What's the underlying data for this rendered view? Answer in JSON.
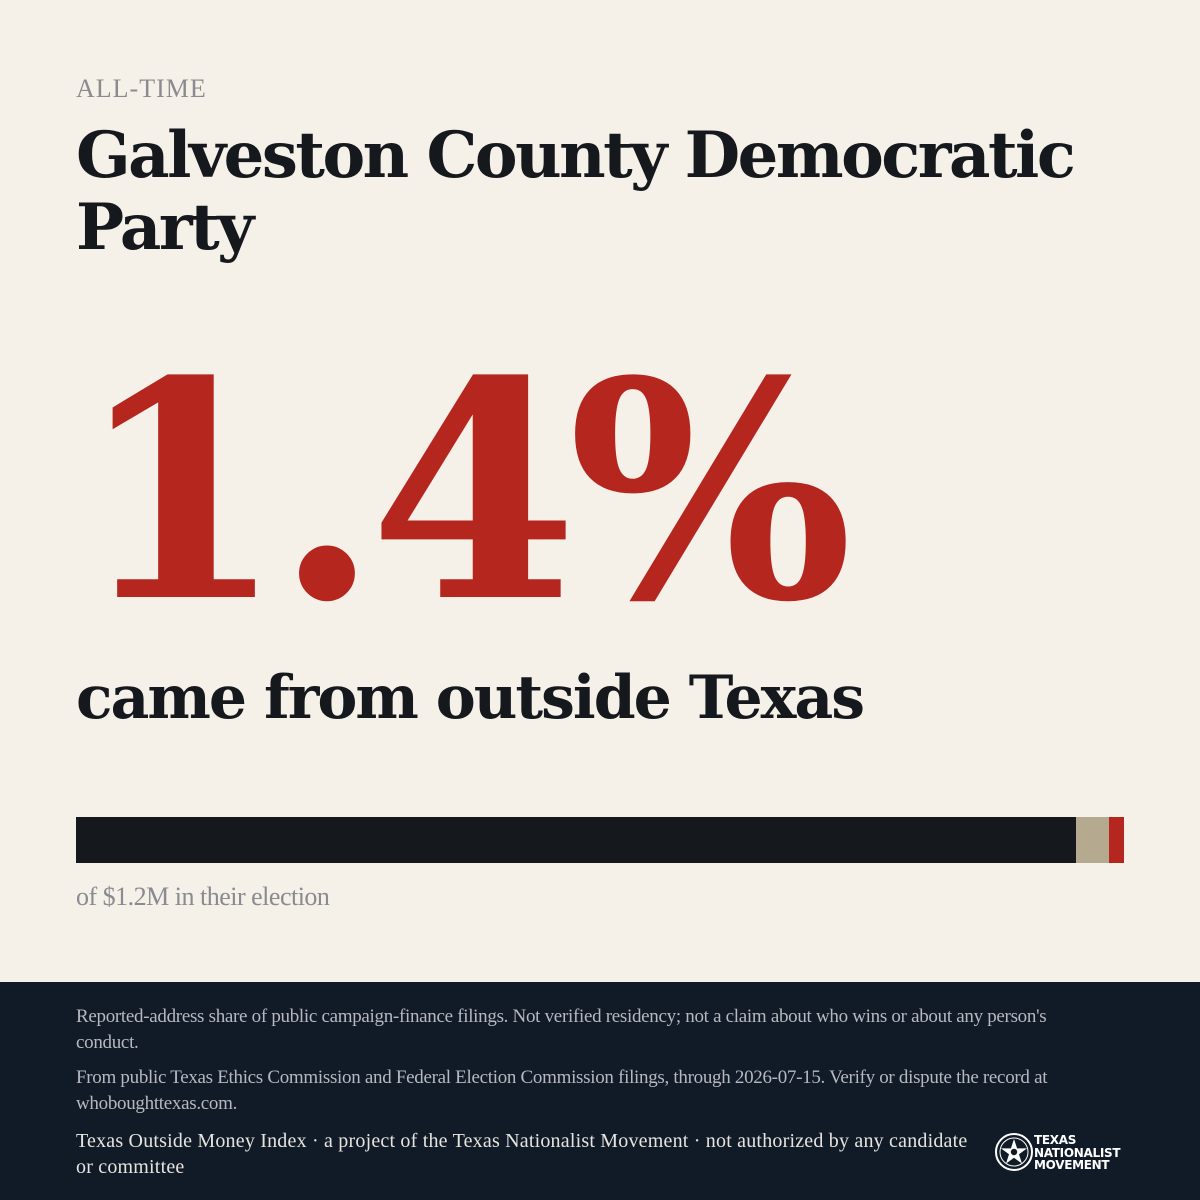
{
  "card": {
    "eyebrow": "ALL-TIME",
    "title": "Galveston County Democratic Party",
    "stat": "1.4%",
    "stat_label": "came from outside Texas",
    "caption": "of $1.2M in their election"
  },
  "share_bar": {
    "outside_texas_fraction": 0.014,
    "second_segment_fraction": 0.032,
    "colors": {
      "texas": "#15181d",
      "second_segment": "#b5aa8f",
      "outside_texas": "#b5261f"
    }
  },
  "footer": {
    "disclaimer": "Reported-address share of public campaign-finance filings. Not verified residency; not a claim about who wins or about any person's conduct.",
    "source": "From public Texas Ethics Commission and Federal Election Commission filings, through 2026-07-15. Verify or dispute the record at whoboughttexas.com.",
    "credit": "Texas Outside Money Index · a project of the Texas Nationalist Movement · not authorized by any candidate or committee"
  },
  "logo": {
    "line1": "TEXAS",
    "line2": "NATIONALIST",
    "line3": "MOVEMENT",
    "icon": "star-seal-icon"
  },
  "colors": {
    "background": "#f5f0e8",
    "accent_red": "#b5261f",
    "ink": "#15181d",
    "footer_bg": "#111a27"
  }
}
